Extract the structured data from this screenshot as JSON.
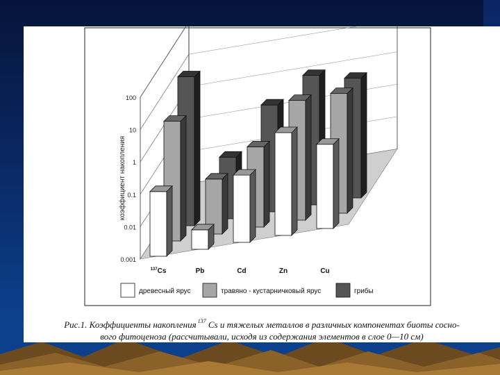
{
  "chart_data": {
    "type": "bar",
    "ylabel": "коэффициент накопления",
    "yscale": "log",
    "ylim": [
      0.001,
      100
    ],
    "yticks": [
      "100",
      "10",
      "1",
      "0.1",
      "0.01",
      "0.001"
    ],
    "categories": [
      "137Cs",
      "Pb",
      "Cd",
      "Zn",
      "Cu"
    ],
    "category_labels": [
      {
        "sup": "137",
        "text": "Cs"
      },
      {
        "sup": "",
        "text": "Pb"
      },
      {
        "sup": "",
        "text": "Cd"
      },
      {
        "sup": "",
        "text": "Zn"
      },
      {
        "sup": "",
        "text": "Cu"
      }
    ],
    "series": [
      {
        "name": "древесный ярус",
        "color": "#ffffff",
        "values": [
          0.1,
          0.004,
          0.12,
          1.5,
          0.4
        ]
      },
      {
        "name": "травяно - кустарничковый ярус",
        "color": "#a6a6a6",
        "values": [
          5.0,
          0.05,
          0.3,
          5.0,
          5.0
        ]
      },
      {
        "name": "грибы",
        "color": "#555555",
        "values": [
          40.0,
          0.08,
          2.0,
          10.0,
          5.0
        ]
      }
    ],
    "legend_position": "bottom",
    "grid": true
  },
  "caption": {
    "prefix": "Рис.1. Коэффициенты накопления",
    "sup": "137",
    "text": "Cs и тяжелых металлов в различных компонентах биоты сосно-",
    "line2": "вого фитоценоза (рассчитывали, исходя из содержания элементов в слое 0—10 см)"
  }
}
